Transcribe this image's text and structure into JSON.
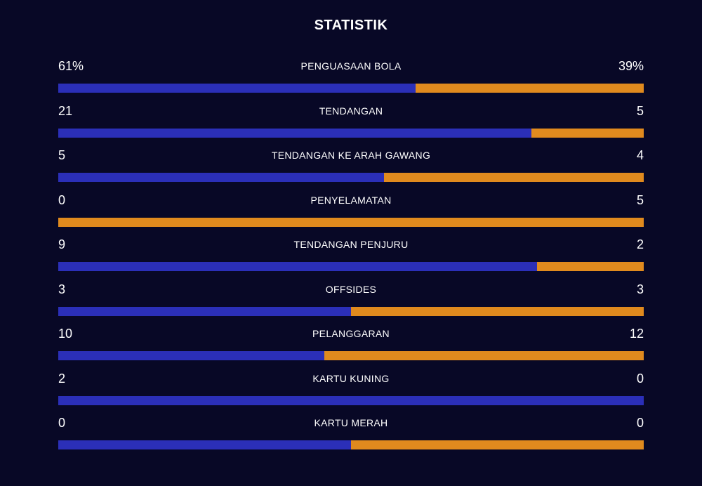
{
  "title": "STATISTIK",
  "colors": {
    "home": "#2b2fb8",
    "away": "#e08a1e",
    "background": "#080826"
  },
  "stats": [
    {
      "label": "PENGUASAAN BOLA",
      "home": "61%",
      "away": "39%",
      "home_share": 0.61
    },
    {
      "label": "TENDANGAN",
      "home": "21",
      "away": "5",
      "home_share": 0.808
    },
    {
      "label": "TENDANGAN KE ARAH GAWANG",
      "home": "5",
      "away": "4",
      "home_share": 0.556
    },
    {
      "label": "PENYELAMATAN",
      "home": "0",
      "away": "5",
      "home_share": 0
    },
    {
      "label": "TENDANGAN PENJURU",
      "home": "9",
      "away": "2",
      "home_share": 0.818
    },
    {
      "label": "OFFSIDES",
      "home": "3",
      "away": "3",
      "home_share": 0.5
    },
    {
      "label": "PELANGGARAN",
      "home": "10",
      "away": "12",
      "home_share": 0.455
    },
    {
      "label": "KARTU KUNING",
      "home": "2",
      "away": "0",
      "home_share": 1
    },
    {
      "label": "KARTU MERAH",
      "home": "0",
      "away": "0",
      "home_share": 0.5
    }
  ]
}
